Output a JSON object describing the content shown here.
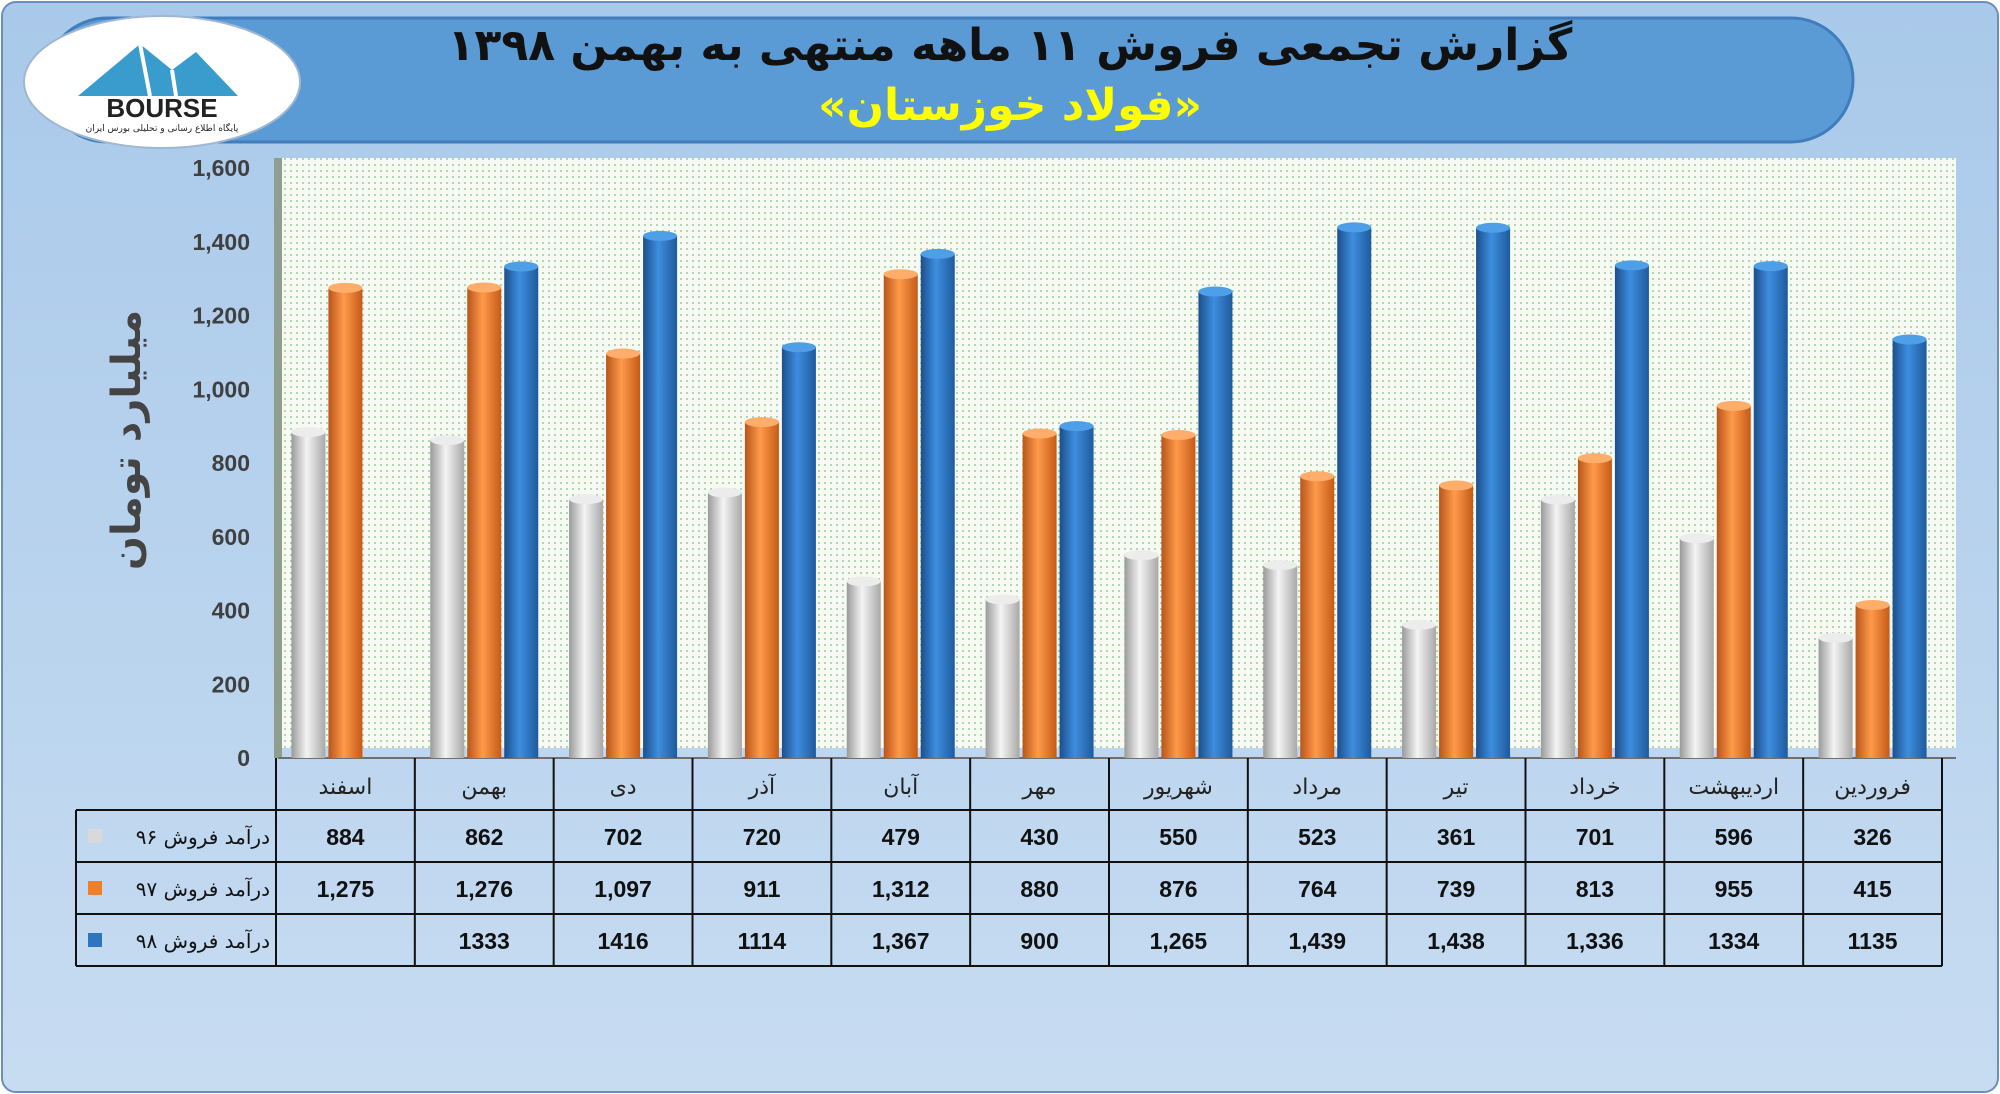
{
  "header": {
    "title": "گزارش تجمعی فروش ۱۱ ماهه منتهی به بهمن ۱۳۹۸",
    "subtitle": "«فولاد خوزستان»"
  },
  "logo": {
    "text": "BOURSE",
    "tagline": "پایگاه اطلاع رسانی و تحلیلی بورس ایران"
  },
  "colors": {
    "background": "#bcd6ee",
    "banner": "#5b9bd5",
    "title": "#111111",
    "subtitle": "#ffff00",
    "series_96": "#d9d9d9",
    "series_97": "#f07f2a",
    "series_98": "#2e75c0",
    "plot_area": "#f3f8ef"
  },
  "chart_data": {
    "type": "bar",
    "ylabel": "میلیارد تومان",
    "ylim": [
      0,
      1600
    ],
    "yticks": [
      0,
      200,
      400,
      600,
      800,
      1000,
      1200,
      1400,
      1600
    ],
    "ytick_labels": [
      "0",
      "200",
      "400",
      "600",
      "800",
      "1,000",
      "1,200",
      "1,400",
      "1,600"
    ],
    "grid": "dotted background, no gridlines",
    "categories": [
      "فروردین",
      "اردیبهشت",
      "خرداد",
      "تیر",
      "مرداد",
      "شهریور",
      "مهر",
      "آبان",
      "آذر",
      "دی",
      "بهمن",
      "اسفند"
    ],
    "series": [
      {
        "name": "درآمد فروش ۹۶",
        "values": [
          326,
          596,
          701,
          361,
          523,
          550,
          430,
          479,
          720,
          702,
          862,
          884
        ],
        "labels": [
          "326",
          "596",
          "701",
          "361",
          "523",
          "550",
          "430",
          "479",
          "720",
          "702",
          "862",
          "884"
        ]
      },
      {
        "name": "درآمد فروش ۹۷",
        "values": [
          415,
          955,
          813,
          739,
          764,
          876,
          880,
          1312,
          911,
          1097,
          1276,
          1275
        ],
        "labels": [
          "415",
          "955",
          "813",
          "739",
          "764",
          "876",
          "880",
          "1,312",
          "911",
          "1,097",
          "1,276",
          "1,275"
        ]
      },
      {
        "name": "درآمد فروش ۹۸",
        "values": [
          1135,
          1334,
          1336,
          1438,
          1439,
          1265,
          900,
          1367,
          1114,
          1416,
          1333,
          null
        ],
        "labels": [
          "1135",
          "1334",
          "1,336",
          "1,438",
          "1,439",
          "1,265",
          "900",
          "1,367",
          "1114",
          "1416",
          "1333",
          ""
        ]
      }
    ]
  }
}
